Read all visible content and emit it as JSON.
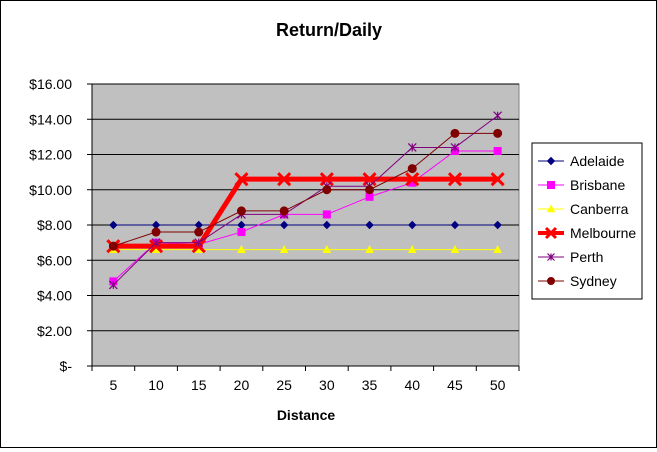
{
  "chart_data": {
    "type": "line",
    "title": "Return/Daily",
    "xlabel": "Distance",
    "ylabel": "",
    "categories": [
      "5",
      "10",
      "15",
      "20",
      "25",
      "30",
      "35",
      "40",
      "45",
      "50"
    ],
    "ylim": [
      0,
      16
    ],
    "y_ticks": [
      0,
      2,
      4,
      6,
      8,
      10,
      12,
      14,
      16
    ],
    "y_tick_labels": [
      "$-",
      "$2.00",
      "$4.00",
      "$6.00",
      "$8.00",
      "$10.00",
      "$12.00",
      "$14.00",
      "$16.00"
    ],
    "grid": true,
    "plot_background": "#c0c0c0",
    "legend_position": "right",
    "series": [
      {
        "name": "Adelaide",
        "color": "#000080",
        "marker": "diamond",
        "values": [
          8.0,
          8.0,
          8.0,
          8.0,
          8.0,
          8.0,
          8.0,
          8.0,
          8.0,
          8.0
        ]
      },
      {
        "name": "Brisbane",
        "color": "#ff00ff",
        "marker": "square",
        "values": [
          4.8,
          7.0,
          6.9,
          7.6,
          8.6,
          8.6,
          9.6,
          10.4,
          12.2,
          12.2
        ]
      },
      {
        "name": "Canberra",
        "color": "#ffff00",
        "marker": "triangle",
        "values": [
          6.6,
          6.6,
          6.6,
          6.6,
          6.6,
          6.6,
          6.6,
          6.6,
          6.6,
          6.6
        ]
      },
      {
        "name": "Melbourne",
        "color": "#ff0000",
        "marker": "x",
        "values": [
          6.8,
          6.8,
          6.8,
          10.6,
          10.6,
          10.6,
          10.6,
          10.6,
          10.6,
          10.6
        ]
      },
      {
        "name": "Perth",
        "color": "#800080",
        "marker": "star",
        "values": [
          4.6,
          7.0,
          7.0,
          8.6,
          8.6,
          10.2,
          10.2,
          12.4,
          12.4,
          14.2
        ]
      },
      {
        "name": "Sydney",
        "color": "#800000",
        "marker": "circle",
        "values": [
          6.8,
          7.6,
          7.6,
          8.8,
          8.8,
          10.0,
          10.0,
          11.2,
          13.2,
          13.2
        ]
      }
    ]
  }
}
